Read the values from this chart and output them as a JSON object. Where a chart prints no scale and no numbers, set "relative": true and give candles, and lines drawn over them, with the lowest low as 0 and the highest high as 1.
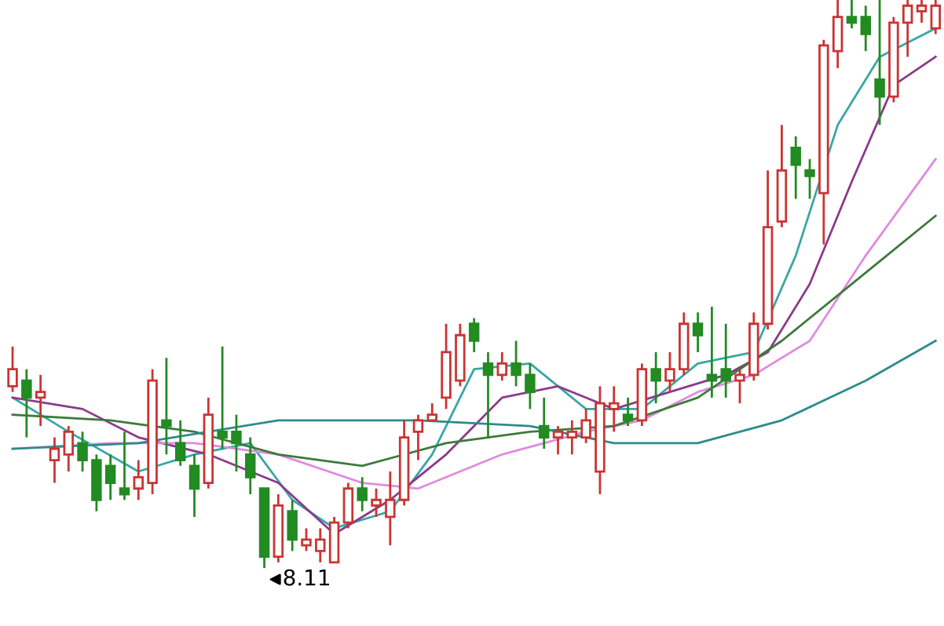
{
  "chart_data": {
    "type": "candlestick",
    "relative": true,
    "categories": [
      null,
      null,
      null,
      null,
      null,
      null,
      null,
      null,
      null,
      null,
      null,
      null,
      null,
      null,
      null,
      null,
      null,
      null,
      null,
      null,
      null,
      null,
      null,
      null,
      null,
      null,
      null,
      null,
      null,
      null,
      null,
      null,
      null,
      null,
      null,
      null,
      null,
      null,
      null,
      null,
      null,
      null,
      null,
      null,
      null,
      null,
      null,
      null,
      null,
      null,
      null,
      null,
      null,
      null,
      null,
      null,
      null,
      null,
      null,
      null,
      null,
      null,
      null,
      null,
      null,
      null,
      null
    ],
    "ohlc": [
      [
        0.32,
        0.39,
        0.31,
        0.35
      ],
      [
        0.33,
        0.35,
        0.23,
        0.3
      ],
      [
        0.3,
        0.34,
        0.25,
        0.31
      ],
      [
        0.19,
        0.23,
        0.15,
        0.21
      ],
      [
        0.2,
        0.25,
        0.17,
        0.24
      ],
      [
        0.22,
        0.24,
        0.17,
        0.19
      ],
      [
        0.19,
        0.2,
        0.1,
        0.12
      ],
      [
        0.18,
        0.2,
        0.12,
        0.15
      ],
      [
        0.14,
        0.24,
        0.12,
        0.13
      ],
      [
        0.14,
        0.19,
        0.12,
        0.16
      ],
      [
        0.15,
        0.35,
        0.13,
        0.33
      ],
      [
        0.26,
        0.37,
        0.2,
        0.25
      ],
      [
        0.22,
        0.26,
        0.18,
        0.19
      ],
      [
        0.18,
        0.2,
        0.09,
        0.14
      ],
      [
        0.15,
        0.3,
        0.14,
        0.27
      ],
      [
        0.24,
        0.39,
        0.21,
        0.23
      ],
      [
        0.24,
        0.27,
        0.17,
        0.22
      ],
      [
        0.2,
        0.23,
        0.13,
        0.16
      ],
      [
        0.14,
        0.14,
        0,
        0.02
      ],
      [
        0.02,
        0.13,
        0.01,
        0.11
      ],
      [
        0.1,
        0.12,
        0.03,
        0.05
      ],
      [
        0.04,
        0.07,
        0.03,
        0.05
      ],
      [
        0.03,
        0.07,
        0.01,
        0.05
      ],
      [
        0.01,
        0.09,
        0.01,
        0.08
      ],
      [
        0.08,
        0.15,
        0.07,
        0.14
      ],
      [
        0.14,
        0.16,
        0.1,
        0.12
      ],
      [
        0.11,
        0.14,
        0.09,
        0.12
      ],
      [
        0.09,
        0.17,
        0.04,
        0.12
      ],
      [
        0.12,
        0.26,
        0.11,
        0.23
      ],
      [
        0.24,
        0.27,
        0.19,
        0.26
      ],
      [
        0.26,
        0.29,
        0.26,
        0.27
      ],
      [
        0.3,
        0.43,
        0.28,
        0.38
      ],
      [
        0.33,
        0.43,
        0.32,
        0.41
      ],
      [
        0.43,
        0.44,
        0.38,
        0.4
      ],
      [
        0.36,
        0.38,
        0.23,
        0.34
      ],
      [
        0.34,
        0.38,
        0.33,
        0.36
      ],
      [
        0.36,
        0.4,
        0.32,
        0.34
      ],
      [
        0.34,
        0.36,
        0.28,
        0.31
      ],
      [
        0.25,
        0.3,
        0.21,
        0.23
      ],
      [
        0.23,
        0.25,
        0.2,
        0.24
      ],
      [
        0.23,
        0.26,
        0.2,
        0.24
      ],
      [
        0.23,
        0.28,
        0.22,
        0.26
      ],
      [
        0.17,
        0.32,
        0.13,
        0.29
      ],
      [
        0.28,
        0.32,
        0.24,
        0.29
      ],
      [
        0.27,
        0.3,
        0.25,
        0.26
      ],
      [
        0.26,
        0.36,
        0.25,
        0.35
      ],
      [
        0.35,
        0.38,
        0.29,
        0.33
      ],
      [
        0.33,
        0.38,
        0.31,
        0.35
      ],
      [
        0.35,
        0.45,
        0.34,
        0.43
      ],
      [
        0.43,
        0.45,
        0.38,
        0.41
      ],
      [
        0.34,
        0.46,
        0.3,
        0.33
      ],
      [
        0.35,
        0.43,
        0.3,
        0.33
      ],
      [
        0.33,
        0.35,
        0.29,
        0.34
      ],
      [
        0.34,
        0.45,
        0.33,
        0.43
      ],
      [
        0.43,
        0.7,
        0.42,
        0.6
      ],
      [
        0.61,
        0.78,
        0.6,
        0.7
      ],
      [
        0.74,
        0.76,
        0.65,
        0.71
      ],
      [
        0.7,
        0.72,
        0.65,
        0.69
      ],
      [
        0.66,
        0.93,
        0.57,
        0.92
      ],
      [
        0.91,
        1.0,
        0.88,
        0.97
      ],
      [
        0.97,
        1.0,
        0.95,
        0.96
      ],
      [
        0.97,
        0.99,
        0.91,
        0.94
      ],
      [
        0.86,
        1.0,
        0.78,
        0.83
      ],
      [
        0.83,
        0.97,
        0.82,
        0.96
      ],
      [
        0.96,
        1.0,
        0.9,
        0.99
      ],
      [
        0.98,
        1.0,
        0.96,
        0.99
      ],
      [
        0.95,
        1.0,
        0.94,
        0.99
      ]
    ],
    "colors": [
      "#cc3333",
      "#228b22",
      "#cc3333",
      "#cc3333",
      "#cc3333",
      "#228b22",
      "#228b22",
      "#228b22",
      "#228b22",
      "#cc3333",
      "#cc3333",
      "#228b22",
      "#228b22",
      "#228b22",
      "#cc3333",
      "#228b22",
      "#228b22",
      "#228b22",
      "#228b22",
      "#cc3333",
      "#228b22",
      "#cc3333",
      "#cc3333",
      "#cc3333",
      "#cc3333",
      "#228b22",
      "#cc3333",
      "#cc3333",
      "#cc3333",
      "#cc3333",
      "#cc3333",
      "#cc3333",
      "#cc3333",
      "#228b22",
      "#228b22",
      "#cc3333",
      "#228b22",
      "#228b22",
      "#228b22",
      "#cc3333",
      "#cc3333",
      "#cc3333",
      "#cc3333",
      "#cc3333",
      "#228b22",
      "#cc3333",
      "#228b22",
      "#cc3333",
      "#cc3333",
      "#228b22",
      "#228b22",
      "#228b22",
      "#cc3333",
      "#cc3333",
      "#cc3333",
      "#cc3333",
      "#228b22",
      "#228b22",
      "#cc3333",
      "#cc3333",
      "#228b22",
      "#228b22",
      "#228b22",
      "#cc3333",
      "#cc3333",
      "#cc3333",
      "#cc3333"
    ],
    "series": [
      {
        "type": "line",
        "color": "#3aa6a6",
        "values": [
          0.3,
          null,
          null,
          null,
          0.24,
          null,
          null,
          null,
          null,
          0.17,
          null,
          null,
          null,
          0.2,
          null,
          null,
          null,
          0.22,
          null,
          null,
          0.12,
          null,
          null,
          0.07,
          null,
          null,
          null,
          0.1,
          null,
          null,
          0.2,
          null,
          null,
          0.35,
          null,
          null,
          null,
          0.36,
          null,
          null,
          null,
          0.28,
          null,
          null,
          null,
          0.28,
          null,
          null,
          null,
          0.36,
          null,
          null,
          null,
          0.38,
          null,
          null,
          0.55,
          null,
          null,
          0.78,
          null,
          null,
          0.9,
          null,
          null,
          null,
          0.95
        ]
      },
      {
        "type": "line",
        "color": "#8b3a8b",
        "values": [
          0.3,
          null,
          null,
          null,
          null,
          0.28,
          null,
          null,
          null,
          0.23,
          null,
          null,
          null,
          null,
          0.2,
          null,
          null,
          null,
          null,
          0.15,
          null,
          null,
          null,
          0.06,
          null,
          null,
          null,
          0.12,
          null,
          null,
          null,
          0.2,
          null,
          null,
          null,
          0.3,
          null,
          null,
          null,
          0.32,
          null,
          null,
          null,
          0.28,
          null,
          null,
          null,
          0.31,
          null,
          null,
          null,
          0.34,
          null,
          null,
          0.38,
          null,
          null,
          0.5,
          null,
          null,
          0.68,
          null,
          null,
          0.85,
          null,
          null,
          0.9
        ]
      },
      {
        "type": "line",
        "color": "#e08ae0",
        "values": [
          0.21,
          null,
          null,
          null,
          null,
          null,
          null,
          0.22,
          null,
          null,
          null,
          null,
          null,
          0.22,
          null,
          null,
          null,
          null,
          null,
          0.2,
          null,
          null,
          null,
          null,
          null,
          0.15,
          null,
          null,
          null,
          0.14,
          null,
          null,
          null,
          null,
          null,
          0.2,
          null,
          null,
          null,
          null,
          null,
          0.24,
          null,
          null,
          null,
          0.26,
          null,
          null,
          null,
          0.31,
          null,
          null,
          null,
          0.34,
          null,
          null,
          null,
          0.4,
          null,
          null,
          null,
          0.55,
          null,
          null,
          null,
          null,
          0.72
        ]
      },
      {
        "type": "line",
        "color": "#3c7a3c",
        "values": [
          0.27,
          null,
          null,
          null,
          null,
          null,
          null,
          0.26,
          null,
          null,
          null,
          null,
          null,
          0.24,
          null,
          null,
          null,
          null,
          null,
          0.2,
          null,
          null,
          null,
          null,
          null,
          0.18,
          null,
          null,
          null,
          null,
          null,
          0.22,
          null,
          null,
          null,
          null,
          null,
          0.24,
          null,
          null,
          null,
          null,
          null,
          0.25,
          null,
          null,
          null,
          null,
          null,
          0.3,
          null,
          null,
          null,
          null,
          null,
          0.4,
          null,
          null,
          null,
          null,
          null,
          0.52,
          null,
          null,
          null,
          null,
          0.62
        ]
      },
      {
        "type": "line",
        "color": "#2e8b8b",
        "values": [
          0.21,
          null,
          null,
          null,
          null,
          null,
          null,
          null,
          null,
          0.22,
          null,
          null,
          null,
          null,
          null,
          null,
          null,
          null,
          null,
          0.26,
          null,
          null,
          null,
          null,
          null,
          null,
          null,
          null,
          null,
          0.26,
          null,
          null,
          null,
          null,
          null,
          null,
          null,
          0.25,
          null,
          null,
          null,
          null,
          null,
          0.22,
          null,
          null,
          null,
          null,
          null,
          0.22,
          null,
          null,
          null,
          null,
          null,
          0.26,
          null,
          null,
          null,
          null,
          null,
          0.33,
          null,
          null,
          null,
          null,
          0.4
        ]
      }
    ],
    "annotations": [
      "8.11"
    ]
  }
}
